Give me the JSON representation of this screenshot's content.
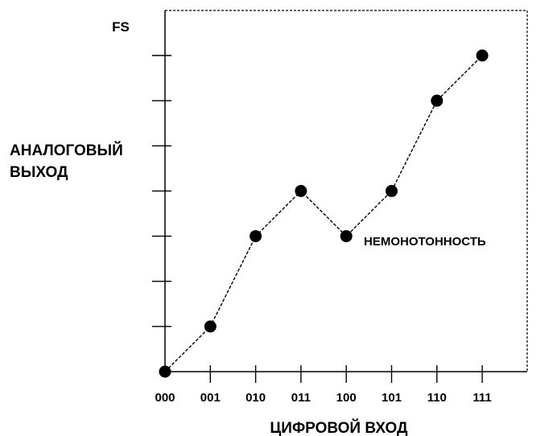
{
  "chart_data": {
    "type": "line",
    "x": [
      "000",
      "001",
      "010",
      "011",
      "100",
      "101",
      "110",
      "111"
    ],
    "values": [
      0,
      1,
      3,
      4,
      3,
      4,
      6,
      7
    ],
    "ylim": [
      0,
      7
    ],
    "y_top_label": "FS",
    "ylabel": "АНАЛОГОВЫЙ ВЫХОД",
    "ylabel_lines": [
      "АНАЛОГОВЫЙ",
      "ВЫХОД"
    ],
    "xlabel": "ЦИФРОВОЙ ВХОД",
    "annotation": "НЕМОНОТОННОСТЬ",
    "line_style": "dashed",
    "marker": "filled-circle",
    "color": "#000000"
  }
}
